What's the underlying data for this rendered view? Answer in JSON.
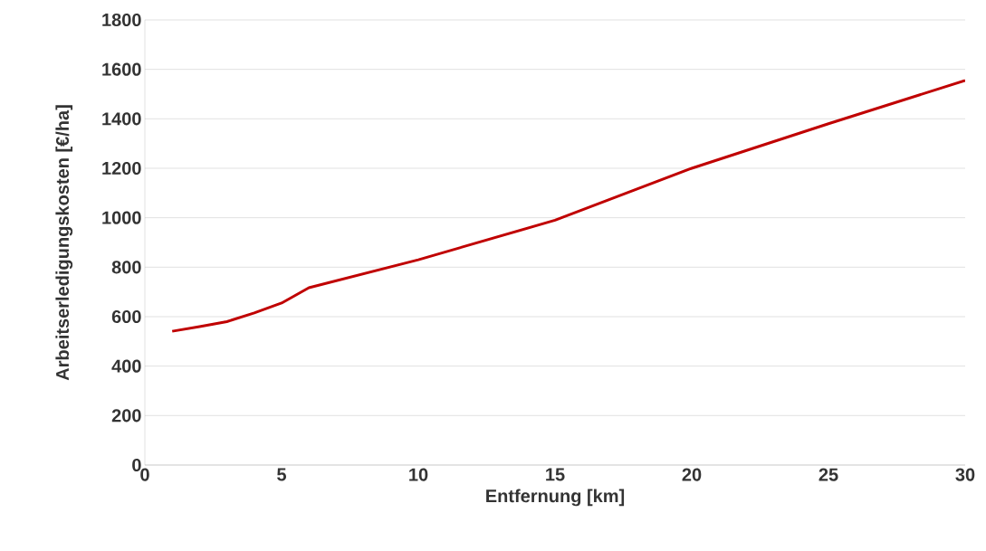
{
  "chart_data": {
    "type": "line",
    "xlabel": "Entfernung [km]",
    "ylabel": "Arbeitserledigungskosten [€/ha]",
    "x": [
      1,
      2,
      3,
      4,
      5,
      6,
      10,
      15,
      20,
      25,
      30
    ],
    "values": [
      541,
      560,
      580,
      615,
      655,
      717,
      830,
      990,
      1200,
      1380,
      1555
    ],
    "color": "#c00000",
    "xlim": [
      0,
      30
    ],
    "xticks": [
      0,
      5,
      10,
      15,
      20,
      25,
      30
    ],
    "ylim": [
      0,
      1800
    ],
    "yticks": [
      0,
      200,
      400,
      600,
      800,
      1000,
      1200,
      1400,
      1600,
      1800
    ],
    "grid": "y",
    "marker": "none",
    "line_style": "solid"
  }
}
